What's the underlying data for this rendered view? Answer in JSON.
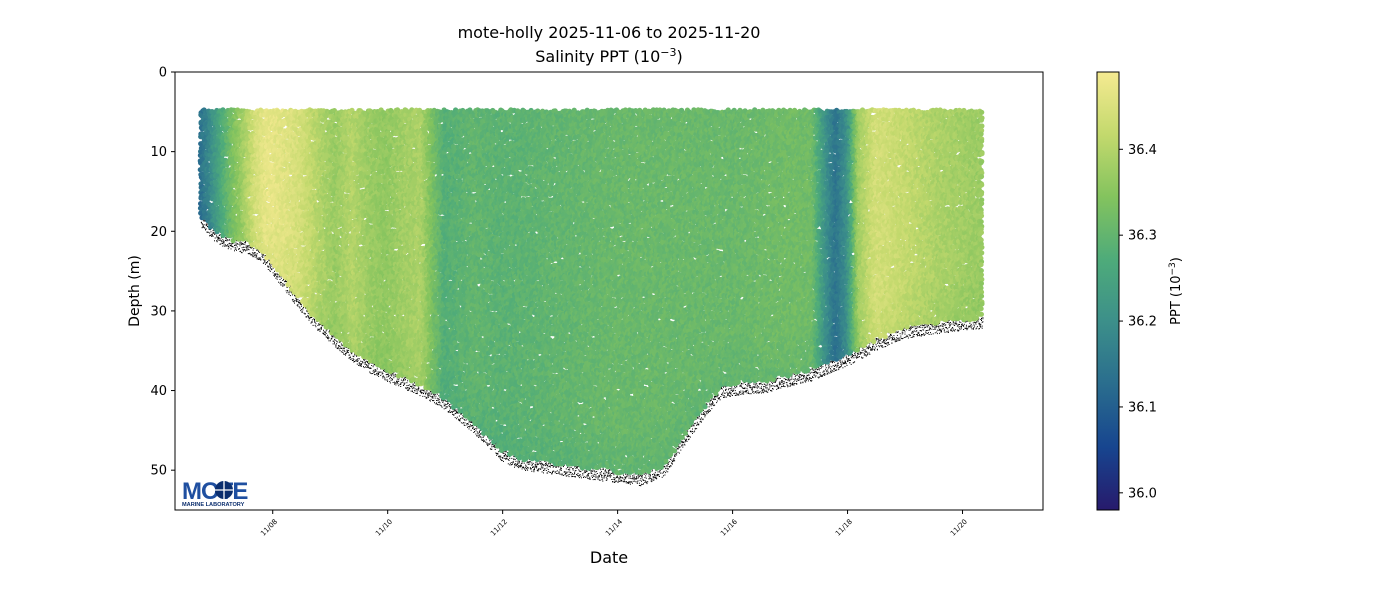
{
  "chart_data": {
    "type": "scatter",
    "title": "mote-holly 2025-11-06 to 2025-11-20",
    "subtitle_prefix": "Salinity PPT (10",
    "subtitle_exp": "−3",
    "subtitle_suffix": ")",
    "xlabel": "Date",
    "ylabel": "Depth (m)",
    "x_ticks": [
      "11/08",
      "11/10",
      "11/12",
      "11/14",
      "11/16",
      "11/18",
      "11/20"
    ],
    "y_ticks": [
      0,
      10,
      20,
      30,
      40,
      50
    ],
    "ylim": [
      55,
      0
    ],
    "xlim_days": [
      6.3,
      21.4
    ],
    "colorbar": {
      "label_prefix": "PPT (10",
      "label_exp": "−3",
      "label_suffix": ")",
      "ticks": [
        36.0,
        36.1,
        36.2,
        36.3,
        36.4
      ],
      "range": [
        35.98,
        36.49
      ],
      "colormap": [
        "#271a6c",
        "#17458f",
        "#2a6d8e",
        "#3c8f8a",
        "#4eab7a",
        "#83c35e",
        "#c3d96d",
        "#f5ea91"
      ]
    },
    "surface_depth": 5,
    "bottom_profile": [
      [
        6.75,
        18
      ],
      [
        7.0,
        20
      ],
      [
        7.3,
        21
      ],
      [
        7.6,
        21.5
      ],
      [
        7.8,
        22.5
      ],
      [
        8.0,
        24
      ],
      [
        8.3,
        27
      ],
      [
        8.7,
        30.5
      ],
      [
        9.0,
        32.5
      ],
      [
        9.3,
        34.5
      ],
      [
        9.7,
        36.5
      ],
      [
        10.0,
        37.5
      ],
      [
        10.5,
        39
      ],
      [
        11.0,
        41
      ],
      [
        11.5,
        44
      ],
      [
        12.0,
        47.5
      ],
      [
        12.3,
        48.5
      ],
      [
        12.8,
        49
      ],
      [
        13.3,
        49.5
      ],
      [
        13.8,
        50
      ],
      [
        14.4,
        50.5
      ],
      [
        14.8,
        49.5
      ],
      [
        15.1,
        46
      ],
      [
        15.5,
        42
      ],
      [
        15.8,
        39.5
      ],
      [
        16.2,
        39
      ],
      [
        16.6,
        38.8
      ],
      [
        17.0,
        38
      ],
      [
        17.4,
        37.3
      ],
      [
        17.8,
        36
      ],
      [
        18.0,
        35.5
      ],
      [
        18.5,
        33.5
      ],
      [
        19.0,
        32
      ],
      [
        19.5,
        31.5
      ],
      [
        20.0,
        31
      ],
      [
        20.35,
        30.8
      ]
    ],
    "salinity_profile": [
      [
        6.7,
        36.12
      ],
      [
        6.9,
        36.18
      ],
      [
        7.1,
        36.26
      ],
      [
        7.3,
        36.33
      ],
      [
        7.5,
        36.38
      ],
      [
        7.7,
        36.44
      ],
      [
        7.9,
        36.47
      ],
      [
        8.2,
        36.46
      ],
      [
        8.5,
        36.44
      ],
      [
        8.8,
        36.4
      ],
      [
        9.1,
        36.37
      ],
      [
        9.4,
        36.4
      ],
      [
        9.7,
        36.37
      ],
      [
        10.0,
        36.36
      ],
      [
        10.3,
        36.38
      ],
      [
        10.6,
        36.39
      ],
      [
        10.8,
        36.33
      ],
      [
        11.0,
        36.28
      ],
      [
        11.5,
        36.3
      ],
      [
        12.0,
        36.29
      ],
      [
        13.0,
        36.3
      ],
      [
        14.0,
        36.31
      ],
      [
        15.0,
        36.31
      ],
      [
        16.0,
        36.31
      ],
      [
        17.0,
        36.32
      ],
      [
        17.4,
        36.32
      ],
      [
        17.6,
        36.22
      ],
      [
        17.8,
        36.14
      ],
      [
        18.0,
        36.2
      ],
      [
        18.2,
        36.38
      ],
      [
        18.5,
        36.44
      ],
      [
        18.8,
        36.43
      ],
      [
        19.2,
        36.41
      ],
      [
        19.6,
        36.39
      ],
      [
        20.0,
        36.38
      ],
      [
        20.35,
        36.37
      ]
    ]
  },
  "logo": {
    "wordmark": "MOTE",
    "subtext": "MARINE LABORATORY",
    "colors": [
      "#1f4fa0",
      "#0b2e6e",
      "#ffffff"
    ]
  }
}
